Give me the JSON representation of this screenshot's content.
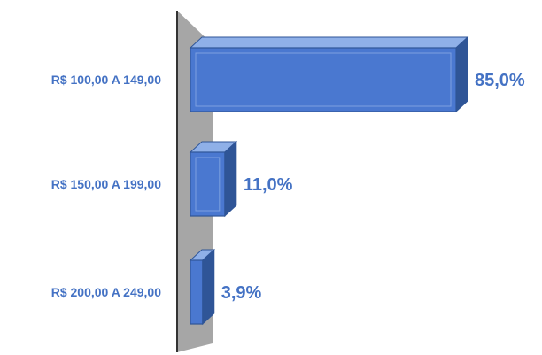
{
  "chart_data": {
    "type": "bar",
    "orientation": "horizontal",
    "categories": [
      "R$ 100,00 A 149,00",
      "R$ 150,00 A 199,00",
      "R$ 200,00 A 249,00"
    ],
    "values": [
      85.0,
      11.0,
      3.9
    ],
    "value_labels": [
      "85,0%",
      "11,0%",
      "3,9%"
    ],
    "xlim": [
      0,
      100
    ],
    "grid": false,
    "style": "3d",
    "colors": {
      "bar": "#4a78d0",
      "bar_dark": "#2f5597",
      "bar_top": "#8fb0e8",
      "wall": "#a6a6a6",
      "label": "#4472c4"
    }
  }
}
